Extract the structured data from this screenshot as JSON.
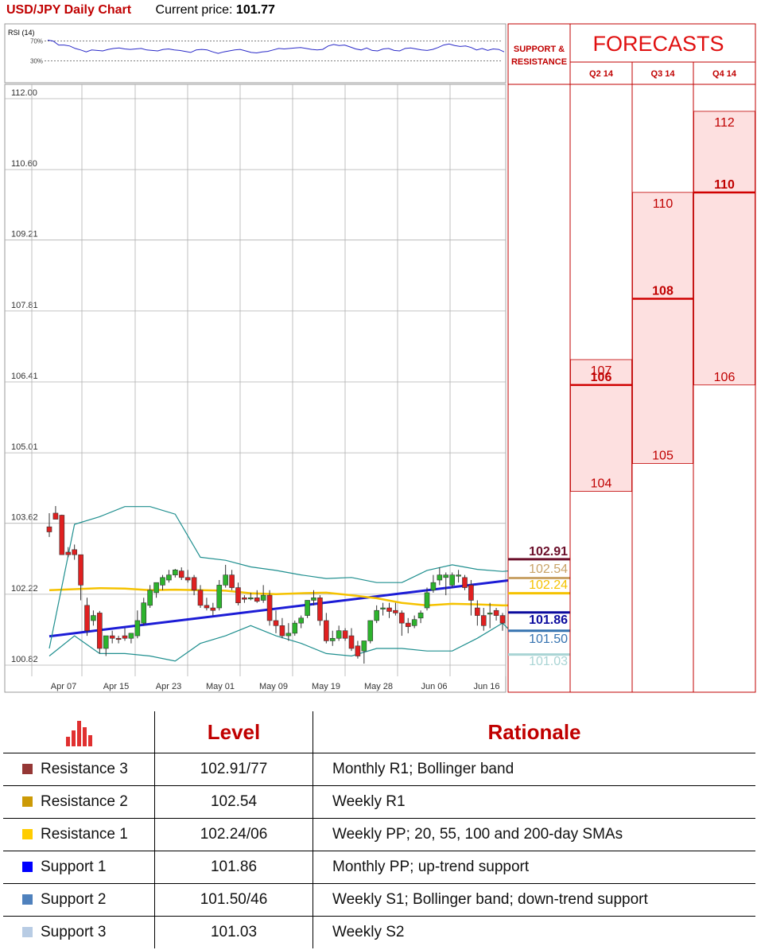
{
  "header": {
    "title": "USD/JPY Daily Chart",
    "current_label": "Current price:",
    "current_value": "101.77"
  },
  "colors": {
    "accent_red": "#c00000",
    "bull_candle": "#2db32d",
    "bear_candle": "#e02020",
    "trend_line": "#1c1cd6",
    "sma": "#f5c200",
    "bollinger": "#1f8f8f",
    "forecast_fill": "#fde0e0"
  },
  "rsi": {
    "label": "RSI (14)",
    "upper_label": "70%",
    "lower_label": "30%",
    "values": [
      72,
      70,
      62,
      62,
      60,
      55,
      52,
      48,
      52,
      51,
      50,
      53,
      55,
      56,
      54,
      53,
      54,
      55,
      52,
      51,
      50,
      53,
      54,
      52,
      51,
      49,
      47,
      52,
      53,
      52,
      48,
      45,
      48,
      50,
      52,
      53,
      50,
      47,
      46,
      48,
      49,
      52,
      55,
      54,
      55,
      56,
      57,
      55,
      53,
      52,
      53,
      60,
      63,
      61,
      62,
      58,
      54,
      52,
      56,
      51,
      50,
      54,
      55,
      51,
      50,
      55,
      56,
      54,
      52,
      51,
      53,
      57,
      62,
      64,
      61,
      59,
      60,
      57,
      52,
      55,
      51,
      54,
      53,
      48
    ]
  },
  "chart_data": {
    "type": "candlestick",
    "title": "USD/JPY Daily Chart",
    "y_ticks": [
      "112.00",
      "110.60",
      "109.21",
      "107.81",
      "106.41",
      "105.01",
      "103.62",
      "102.22",
      "100.82"
    ],
    "ylim": [
      100.82,
      112.0
    ],
    "x_ticks": [
      "Apr 07",
      "Apr 15",
      "Apr 23",
      "May 01",
      "May 09",
      "May 19",
      "May 28",
      "Jun 06",
      "Jun 16"
    ],
    "grid": true,
    "candles": [
      [
        103.55,
        103.82,
        103.45,
        103.35
      ],
      [
        103.82,
        103.96,
        103.7,
        103.7
      ],
      [
        103.78,
        103.79,
        103.0,
        103.05
      ],
      [
        103.05,
        103.15,
        103.0,
        102.95
      ],
      [
        103.1,
        103.2,
        103.0,
        102.9
      ],
      [
        103.0,
        103.0,
        102.4,
        102.1
      ],
      [
        102.0,
        102.15,
        101.5,
        101.4
      ],
      [
        101.7,
        101.9,
        101.8,
        101.6
      ],
      [
        101.85,
        101.89,
        101.15,
        101.05
      ],
      [
        101.15,
        101.35,
        101.4,
        101.0
      ],
      [
        101.4,
        101.5,
        101.35,
        101.25
      ],
      [
        101.35,
        101.4,
        101.33,
        101.25
      ],
      [
        101.4,
        101.55,
        101.35,
        101.3
      ],
      [
        101.35,
        101.45,
        101.45,
        101.25
      ],
      [
        101.4,
        101.9,
        101.7,
        101.35
      ],
      [
        101.65,
        102.15,
        102.05,
        101.6
      ],
      [
        102.0,
        102.4,
        102.3,
        101.95
      ],
      [
        102.25,
        102.45,
        102.45,
        102.15
      ],
      [
        102.4,
        102.6,
        102.55,
        102.3
      ],
      [
        102.5,
        102.7,
        102.6,
        102.45
      ],
      [
        102.6,
        102.72,
        102.7,
        102.55
      ],
      [
        102.68,
        102.75,
        102.55,
        102.5
      ],
      [
        102.55,
        102.7,
        102.5,
        102.45
      ],
      [
        102.55,
        102.6,
        102.3,
        102.2
      ],
      [
        102.3,
        102.4,
        102.0,
        101.95
      ],
      [
        102.0,
        102.15,
        101.95,
        101.9
      ],
      [
        101.95,
        102.05,
        101.9,
        101.8
      ],
      [
        101.95,
        102.5,
        102.4,
        101.9
      ],
      [
        102.4,
        102.8,
        102.6,
        102.35
      ],
      [
        102.6,
        102.7,
        102.35,
        102.3
      ],
      [
        102.35,
        102.45,
        102.05,
        102.0
      ],
      [
        102.15,
        102.2,
        102.12,
        102.05
      ],
      [
        102.15,
        102.25,
        102.15,
        102.1
      ],
      [
        102.15,
        102.3,
        102.08,
        102.05
      ],
      [
        102.1,
        102.4,
        102.2,
        102.05
      ],
      [
        102.2,
        102.3,
        101.7,
        101.6
      ],
      [
        101.7,
        101.9,
        101.6,
        101.45
      ],
      [
        101.6,
        101.75,
        101.4,
        101.35
      ],
      [
        101.4,
        101.65,
        101.45,
        101.3
      ],
      [
        101.45,
        101.7,
        101.65,
        101.4
      ],
      [
        101.65,
        101.8,
        101.75,
        101.55
      ],
      [
        101.8,
        102.05,
        102.1,
        101.75
      ],
      [
        102.1,
        102.3,
        102.15,
        102.0
      ],
      [
        102.15,
        102.2,
        101.7,
        101.6
      ],
      [
        101.7,
        101.85,
        101.3,
        101.25
      ],
      [
        101.3,
        101.5,
        101.35,
        101.2
      ],
      [
        101.35,
        101.6,
        101.5,
        101.3
      ],
      [
        101.5,
        101.55,
        101.35,
        101.3
      ],
      [
        101.4,
        101.55,
        101.15,
        101.1
      ],
      [
        101.2,
        101.3,
        101.0,
        100.95
      ],
      [
        101.1,
        101.25,
        101.3,
        100.85
      ],
      [
        101.3,
        101.7,
        101.7,
        101.25
      ],
      [
        101.7,
        102.0,
        101.9,
        101.65
      ],
      [
        101.95,
        102.05,
        101.95,
        101.8
      ],
      [
        101.95,
        102.05,
        101.88,
        101.75
      ],
      [
        101.9,
        102.05,
        101.85,
        101.8
      ],
      [
        101.85,
        101.9,
        101.65,
        101.4
      ],
      [
        101.65,
        101.75,
        101.58,
        101.45
      ],
      [
        101.6,
        101.8,
        101.72,
        101.55
      ],
      [
        101.75,
        101.9,
        101.85,
        101.65
      ],
      [
        101.95,
        102.35,
        102.25,
        101.9
      ],
      [
        102.3,
        102.6,
        102.45,
        102.25
      ],
      [
        102.5,
        102.75,
        102.6,
        102.4
      ],
      [
        102.55,
        102.65,
        102.6,
        102.2
      ],
      [
        102.4,
        102.65,
        102.6,
        102.35
      ],
      [
        102.6,
        102.7,
        102.6,
        102.45
      ],
      [
        102.55,
        102.6,
        102.35,
        102.3
      ],
      [
        102.4,
        102.5,
        102.1,
        101.8
      ],
      [
        101.95,
        102.1,
        101.8,
        101.6
      ],
      [
        101.8,
        101.95,
        101.6,
        101.5
      ],
      [
        101.85,
        102.05,
        101.85,
        101.55
      ],
      [
        101.9,
        101.95,
        101.8,
        101.7
      ],
      [
        101.8,
        101.85,
        101.65,
        101.5
      ]
    ],
    "candle_format": "open,high,close,low (green when close > open)",
    "series": [
      {
        "type": "line",
        "points": [
          [
            0,
            101.39
          ],
          [
            74,
            102.51
          ]
        ]
      },
      {
        "type": "line",
        "points": [
          [
            0,
            102.3
          ],
          [
            4,
            102.32
          ],
          [
            8,
            102.34
          ],
          [
            12,
            102.33
          ],
          [
            16,
            102.3
          ],
          [
            20,
            102.31
          ],
          [
            24,
            102.3
          ],
          [
            28,
            102.29
          ],
          [
            32,
            102.24
          ],
          [
            36,
            102.22
          ],
          [
            40,
            102.24
          ],
          [
            44,
            102.25
          ],
          [
            48,
            102.2
          ],
          [
            52,
            102.14
          ],
          [
            56,
            102.05
          ],
          [
            60,
            102.0
          ],
          [
            64,
            102.03
          ],
          [
            68,
            102.02
          ],
          [
            72,
            102.0
          ],
          [
            74,
            102.0
          ]
        ]
      },
      {
        "type": "line",
        "points": [
          [
            0,
            101.15
          ],
          [
            4,
            103.6
          ],
          [
            8,
            103.75
          ],
          [
            12,
            103.95
          ],
          [
            16,
            103.95
          ],
          [
            20,
            103.8
          ],
          [
            24,
            102.95
          ],
          [
            28,
            102.89
          ],
          [
            32,
            102.76
          ],
          [
            36,
            102.69
          ],
          [
            40,
            102.6
          ],
          [
            44,
            102.53
          ],
          [
            48,
            102.55
          ],
          [
            52,
            102.45
          ],
          [
            56,
            102.45
          ],
          [
            60,
            102.69
          ],
          [
            64,
            102.8
          ],
          [
            68,
            102.71
          ],
          [
            72,
            102.67
          ],
          [
            74,
            102.69
          ]
        ]
      },
      {
        "type": "line",
        "points": [
          [
            0,
            101.0
          ],
          [
            4,
            101.4
          ],
          [
            8,
            101.05
          ],
          [
            12,
            101.05
          ],
          [
            16,
            101.0
          ],
          [
            20,
            100.9
          ],
          [
            24,
            101.25
          ],
          [
            28,
            101.4
          ],
          [
            32,
            101.6
          ],
          [
            36,
            101.4
          ],
          [
            40,
            101.25
          ],
          [
            44,
            101.05
          ],
          [
            48,
            101.0
          ],
          [
            52,
            101.15
          ],
          [
            56,
            101.15
          ],
          [
            60,
            101.1
          ],
          [
            64,
            101.1
          ],
          [
            68,
            101.35
          ],
          [
            72,
            101.65
          ],
          [
            74,
            101.4
          ]
        ]
      }
    ]
  },
  "sr_levels": {
    "header_line1": "SUPPORT &",
    "header_line2": "RESISTANCE",
    "levels": [
      {
        "label": "102.91",
        "value": 102.91,
        "color": "#6b0f2a"
      },
      {
        "label": "102.54",
        "value": 102.54,
        "color": "#c9a368"
      },
      {
        "label": "102.24",
        "value": 102.24,
        "color": "#f5c200"
      },
      {
        "label": "101.86",
        "value": 101.86,
        "color": "#0b0b9e"
      },
      {
        "label": "101.50",
        "value": 101.5,
        "color": "#3673b0"
      },
      {
        "label": "101.03",
        "value": 101.03,
        "color": "#a9d4d4"
      }
    ]
  },
  "forecasts": {
    "title": "FORECASTS",
    "quarters": [
      {
        "label": "Q2 14",
        "high": 107,
        "median": "106",
        "median_value": 106.35,
        "low": 104,
        "high_label": "107",
        "low_label": "104",
        "high_value": 106.85,
        "low_value": 104.25
      },
      {
        "label": "Q3 14",
        "high": 110,
        "median": "108",
        "median_value": 108.05,
        "low": 105,
        "high_label": "110",
        "low_label": "105",
        "high_value": 110.15,
        "low_value": 104.8
      },
      {
        "label": "Q4 14",
        "high": 112,
        "median": "110",
        "median_value": 110.15,
        "low": 106,
        "high_label": "112",
        "low_label": "106",
        "high_value": 111.75,
        "low_value": 106.35
      }
    ]
  },
  "levels_table": {
    "col_level": "Level",
    "col_rationale": "Rationale",
    "rows": [
      {
        "name": "Resistance 3",
        "level": "102.91/77",
        "rationale": "Monthly R1; Bollinger band",
        "color": "#953735"
      },
      {
        "name": "Resistance 2",
        "level": "102.54",
        "rationale": "Weekly R1",
        "color": "#cc9a06"
      },
      {
        "name": "Resistance 1",
        "level": "102.24/06",
        "rationale": "Weekly PP; 20, 55, 100 and 200-day SMAs",
        "color": "#ffcc00"
      },
      {
        "name": "Support 1",
        "level": "101.86",
        "rationale": "Monthly PP; up-trend support",
        "color": "#0000ff"
      },
      {
        "name": "Support 2",
        "level": "101.50/46",
        "rationale": "Weekly S1; Bollinger band; down-trend support",
        "color": "#4f81bd"
      },
      {
        "name": "Support 3",
        "level": "101.03",
        "rationale": "Weekly S2",
        "color": "#b8cce4"
      }
    ]
  }
}
